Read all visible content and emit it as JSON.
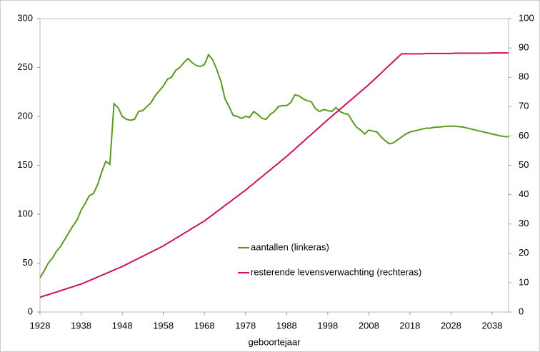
{
  "chart_data": {
    "type": "line",
    "xlabel": "geboortejaar",
    "x": [
      1928,
      1929,
      1930,
      1931,
      1932,
      1933,
      1934,
      1935,
      1936,
      1937,
      1938,
      1939,
      1940,
      1941,
      1942,
      1943,
      1944,
      1945,
      1946,
      1947,
      1948,
      1949,
      1950,
      1951,
      1952,
      1953,
      1954,
      1955,
      1956,
      1957,
      1958,
      1959,
      1960,
      1961,
      1962,
      1963,
      1964,
      1965,
      1966,
      1967,
      1968,
      1969,
      1970,
      1971,
      1972,
      1973,
      1974,
      1975,
      1976,
      1977,
      1978,
      1979,
      1980,
      1981,
      1982,
      1983,
      1984,
      1985,
      1986,
      1987,
      1988,
      1989,
      1990,
      1991,
      1992,
      1993,
      1994,
      1995,
      1996,
      1997,
      1998,
      1999,
      2000,
      2001,
      2002,
      2003,
      2004,
      2005,
      2006,
      2007,
      2008,
      2009,
      2010,
      2011,
      2012,
      2013,
      2014,
      2015,
      2016,
      2017,
      2018,
      2019,
      2020,
      2021,
      2022,
      2023,
      2024,
      2025,
      2026,
      2027,
      2028,
      2029,
      2030,
      2031,
      2032,
      2033,
      2034,
      2035,
      2036,
      2037,
      2038,
      2039,
      2040,
      2041,
      2042
    ],
    "xlim": [
      1928,
      2042
    ],
    "xticks": [
      1928,
      1938,
      1948,
      1958,
      1968,
      1978,
      1988,
      1998,
      2008,
      2018,
      2028,
      2038
    ],
    "ylim": [
      0,
      300
    ],
    "yticks": [
      0,
      50,
      100,
      150,
      200,
      250,
      300
    ],
    "y2lim": [
      0,
      100
    ],
    "y2ticks": [
      0,
      10,
      20,
      30,
      40,
      50,
      60,
      70,
      80,
      90,
      100
    ],
    "series": [
      {
        "name": "aantallen (linkeras)",
        "color": "#5a9a1e",
        "values": [
          35,
          42,
          50,
          55,
          62,
          67,
          74,
          81,
          88,
          94,
          104,
          111,
          119,
          121,
          130,
          143,
          154,
          151,
          213,
          209,
          200,
          197,
          196,
          197,
          205,
          206,
          210,
          214,
          221,
          226,
          231,
          238,
          240,
          247,
          250,
          255,
          259,
          255,
          252,
          251,
          253,
          263,
          258,
          248,
          236,
          218,
          210,
          201,
          200,
          198,
          200,
          199,
          205,
          202,
          198,
          197,
          202,
          205,
          210,
          211,
          211,
          214,
          222,
          221,
          218,
          216,
          215,
          208,
          205,
          207,
          206,
          205,
          209,
          205,
          203,
          202,
          195,
          189,
          186,
          182,
          186,
          185,
          184,
          179,
          175,
          172,
          173,
          176,
          179,
          182,
          184,
          185,
          186,
          187,
          188,
          188,
          189,
          189,
          189.5,
          190,
          190,
          190,
          189.5,
          189,
          188,
          187,
          186,
          185,
          184,
          183,
          182,
          181,
          180,
          179.5,
          179
        ]
      },
      {
        "name": "resterende levensverwachting (rechteras)",
        "color": "#cc1166",
        "axis": "y2",
        "values": [
          5,
          5.5,
          5.9,
          6.4,
          6.8,
          7.3,
          7.7,
          8.2,
          8.6,
          9.1,
          9.5,
          10.1,
          10.7,
          11.3,
          11.9,
          12.5,
          13.1,
          13.7,
          14.3,
          14.9,
          15.5,
          16.2,
          16.9,
          17.6,
          18.3,
          19,
          19.7,
          20.4,
          21.1,
          21.8,
          22.5,
          23.4,
          24.2,
          25.1,
          25.9,
          26.8,
          27.6,
          28.5,
          29.3,
          30.2,
          31,
          32.1,
          33.1,
          34.2,
          35.2,
          36.3,
          37.3,
          38.4,
          39.4,
          40.5,
          41.5,
          42.7,
          43.8,
          45,
          46.1,
          47.3,
          48.4,
          49.6,
          50.7,
          51.9,
          53,
          54.3,
          55.5,
          56.8,
          58,
          59.3,
          60.5,
          61.8,
          63,
          64.3,
          65.5,
          66.7,
          67.9,
          69.1,
          70.3,
          71.5,
          72.7,
          73.9,
          75.1,
          76.3,
          77.5,
          78.8,
          80.1,
          81.4,
          82.8,
          84.1,
          85.4,
          86.7,
          88,
          88,
          88,
          88,
          88,
          88,
          88.1,
          88.1,
          88.1,
          88.1,
          88.1,
          88.1,
          88.1,
          88.2,
          88.2,
          88.2,
          88.2,
          88.2,
          88.2,
          88.2,
          88.2,
          88.2,
          88.3,
          88.3,
          88.3,
          88.3,
          88.3
        ]
      }
    ]
  }
}
